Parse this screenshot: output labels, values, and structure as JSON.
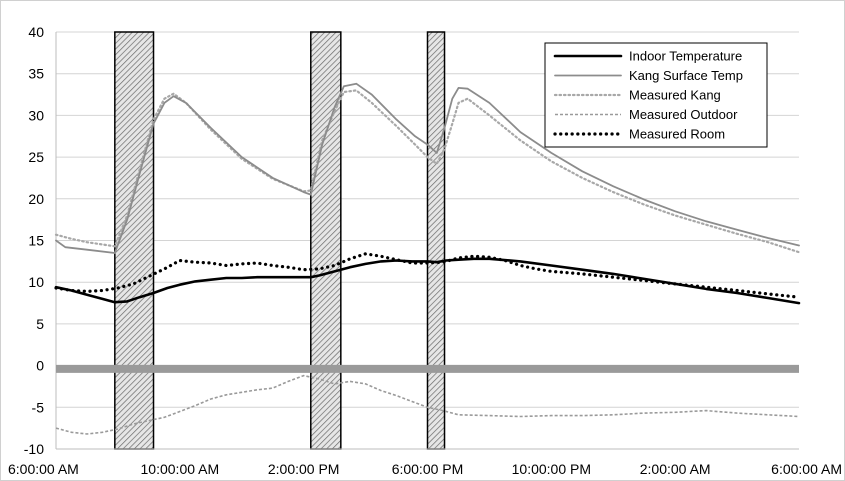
{
  "chart_data": {
    "type": "line",
    "title": "",
    "xlabel": "",
    "ylabel": "",
    "ylim": [
      -10,
      40
    ],
    "yticks": [
      -10,
      -5,
      0,
      5,
      10,
      15,
      20,
      25,
      30,
      35,
      40
    ],
    "xlim": [
      6,
      30
    ],
    "x_unit": "hours since 6:00:00 AM",
    "xticks": [
      {
        "x": 6,
        "label": "6:00:00 AM"
      },
      {
        "x": 10,
        "label": "10:00:00 AM"
      },
      {
        "x": 14,
        "label": "2:00:00 PM"
      },
      {
        "x": 18,
        "label": "6:00:00 PM"
      },
      {
        "x": 22,
        "label": "10:00:00 PM"
      },
      {
        "x": 26,
        "label": "2:00:00 AM"
      },
      {
        "x": 30,
        "label": "6:00:00 AM"
      }
    ],
    "grid": "horizontal",
    "legend_position": "top-right",
    "shaded_periods": [
      [
        7.9,
        9.15
      ],
      [
        14.23,
        15.2
      ],
      [
        18.0,
        18.55
      ]
    ],
    "zero_band": {
      "y": -0.4,
      "color": "#9a9a9a"
    },
    "series": [
      {
        "name": "Indoor Temperature",
        "color": "#000000",
        "style": "solid-thick",
        "x": [
          6,
          6.5,
          7,
          7.5,
          7.9,
          8.3,
          8.7,
          9.15,
          9.6,
          10,
          10.5,
          11,
          11.5,
          12,
          12.5,
          13,
          13.5,
          14,
          14.23,
          14.5,
          15,
          15.5,
          16,
          16.5,
          17,
          17.5,
          18,
          18.3,
          18.6,
          19,
          19.5,
          20,
          21,
          22,
          23,
          24,
          25,
          26,
          27,
          28,
          29,
          30
        ],
        "y": [
          9.4,
          9.0,
          8.5,
          8.0,
          7.6,
          7.7,
          8.2,
          8.7,
          9.3,
          9.7,
          10.1,
          10.3,
          10.5,
          10.5,
          10.6,
          10.6,
          10.6,
          10.6,
          10.6,
          10.8,
          11.3,
          11.8,
          12.2,
          12.5,
          12.6,
          12.5,
          12.5,
          12.4,
          12.6,
          12.7,
          12.8,
          12.8,
          12.5,
          12.0,
          11.5,
          11.0,
          10.4,
          9.8,
          9.2,
          8.7,
          8.1,
          7.5
        ]
      },
      {
        "name": "Kang Surface Temp",
        "color": "#8c8c8c",
        "style": "solid",
        "x": [
          6,
          6.3,
          7,
          7.9,
          8.3,
          8.7,
          9.15,
          9.5,
          9.8,
          10.2,
          11,
          12,
          13,
          14,
          14.23,
          14.6,
          15.0,
          15.3,
          15.7,
          16.2,
          17,
          17.6,
          18.0,
          18.3,
          18.55,
          18.8,
          19.0,
          19.3,
          20,
          21,
          22,
          23,
          24,
          25,
          26,
          27,
          28,
          29,
          30
        ],
        "y": [
          15.0,
          14.2,
          13.9,
          13.5,
          17.5,
          23.0,
          29.0,
          31.5,
          32.3,
          31.5,
          28.5,
          25.0,
          22.5,
          20.8,
          20.5,
          26.5,
          31.0,
          33.5,
          33.8,
          32.5,
          29.5,
          27.5,
          26.5,
          25.5,
          28.5,
          32.0,
          33.3,
          33.2,
          31.5,
          28.0,
          25.5,
          23.3,
          21.5,
          19.9,
          18.5,
          17.3,
          16.3,
          15.3,
          14.4
        ]
      },
      {
        "name": "Measured Kang",
        "color": "#a8a8a8",
        "style": "dotted",
        "x": [
          6,
          6.5,
          7,
          7.9,
          8.3,
          8.7,
          9.15,
          9.5,
          9.8,
          10.2,
          11,
          12,
          13,
          14,
          14.23,
          14.6,
          15.0,
          15.3,
          15.7,
          16.2,
          17,
          17.6,
          18.0,
          18.3,
          18.55,
          18.8,
          19.0,
          19.3,
          20,
          21,
          22,
          23,
          24,
          25,
          26,
          27,
          28,
          29,
          30
        ],
        "y": [
          15.7,
          15.2,
          14.8,
          14.3,
          18.0,
          23.5,
          29.5,
          32.0,
          32.6,
          31.5,
          28.3,
          24.8,
          22.4,
          20.9,
          21.0,
          27.0,
          30.5,
          32.8,
          33.0,
          31.5,
          28.7,
          26.5,
          25.0,
          24.2,
          26.0,
          29.0,
          31.5,
          32.0,
          30.0,
          27.0,
          24.5,
          22.5,
          20.8,
          19.3,
          18.0,
          16.9,
          15.8,
          14.8,
          13.6
        ]
      },
      {
        "name": "Measured Outdoor",
        "color": "#9a9a9a",
        "style": "dashed",
        "x": [
          6,
          6.5,
          7,
          7.5,
          8,
          8.5,
          9,
          9.5,
          10,
          10.5,
          11,
          11.5,
          12,
          12.5,
          13,
          13.5,
          14,
          14.5,
          15,
          15.5,
          16,
          16.5,
          17,
          17.5,
          18,
          18.5,
          19,
          20,
          21,
          22,
          23,
          24,
          25,
          26,
          27,
          28,
          29,
          30
        ],
        "y": [
          -7.5,
          -8.0,
          -8.2,
          -8.0,
          -7.6,
          -7.0,
          -6.6,
          -6.2,
          -5.5,
          -4.8,
          -4.0,
          -3.5,
          -3.2,
          -2.9,
          -2.7,
          -1.9,
          -1.2,
          -1.6,
          -2.2,
          -1.9,
          -2.2,
          -3.0,
          -3.6,
          -4.3,
          -5.0,
          -5.4,
          -5.9,
          -6.0,
          -6.1,
          -6.0,
          -6.0,
          -5.9,
          -5.7,
          -5.6,
          -5.4,
          -5.7,
          -5.9,
          -6.1
        ]
      },
      {
        "name": "Measured Room",
        "color": "#000000",
        "style": "dotted-thick",
        "x": [
          6,
          6.5,
          7,
          7.5,
          8,
          8.5,
          9,
          9.5,
          10,
          10.5,
          11,
          11.5,
          12,
          12.5,
          13,
          13.5,
          14,
          14.5,
          15,
          15.5,
          16,
          16.5,
          17,
          17.5,
          18,
          18.5,
          19,
          19.5,
          20,
          20.5,
          21,
          21.5,
          22,
          23,
          24,
          25,
          26,
          27,
          28,
          29,
          30
        ],
        "y": [
          9.3,
          9.0,
          8.9,
          9.0,
          9.3,
          9.8,
          10.7,
          11.6,
          12.6,
          12.4,
          12.3,
          12.0,
          12.2,
          12.3,
          12.0,
          11.8,
          11.5,
          11.6,
          12.0,
          12.8,
          13.4,
          13.1,
          12.7,
          12.3,
          12.3,
          12.4,
          12.9,
          13.1,
          13.0,
          12.6,
          12.0,
          11.6,
          11.3,
          11.0,
          10.6,
          10.2,
          9.8,
          9.4,
          9.0,
          8.6,
          8.2
        ]
      }
    ]
  }
}
